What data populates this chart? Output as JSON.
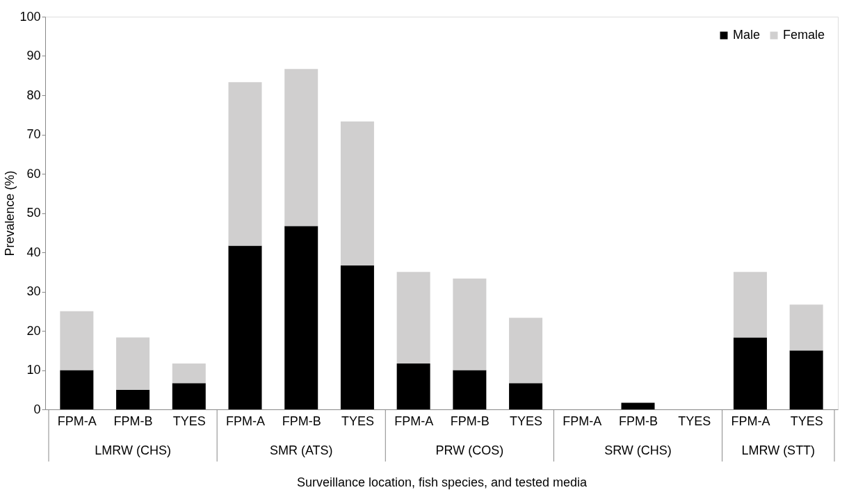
{
  "chart_data": {
    "type": "bar",
    "stacked": true,
    "xlabel": "Surveillance location, fish species, and tested media",
    "ylabel": "Prevalence (%)",
    "categories": [
      "FPM-A",
      "FPM-B",
      "TYES",
      "FPM-A",
      "FPM-B",
      "TYES",
      "FPM-A",
      "FPM-B",
      "TYES",
      "FPM-A",
      "FPM-B",
      "TYES",
      "FPM-A",
      "TYES"
    ],
    "annotations": [
      "LMRW (CHS)",
      "SMR (ATS)",
      "PRW (COS)",
      "SRW (CHS)",
      "LMRW (STT)"
    ],
    "series": [
      {
        "name": "Male",
        "color": "#000000",
        "values": [
          10,
          5,
          6.7,
          41.7,
          46.7,
          36.7,
          11.7,
          10,
          6.7,
          0,
          1.7,
          0,
          18.3,
          15
        ]
      },
      {
        "name": "Female",
        "color": "#d0cfcf",
        "values": [
          15,
          13.3,
          5,
          41.6,
          40,
          36.6,
          23.3,
          23.3,
          16.6,
          0,
          0,
          0,
          16.7,
          11.7
        ]
      }
    ],
    "ylim": [
      0,
      100
    ],
    "yticks": [
      0,
      10,
      20,
      30,
      40,
      50,
      60,
      70,
      80,
      90,
      100
    ],
    "grid": false,
    "legend": "top right"
  }
}
